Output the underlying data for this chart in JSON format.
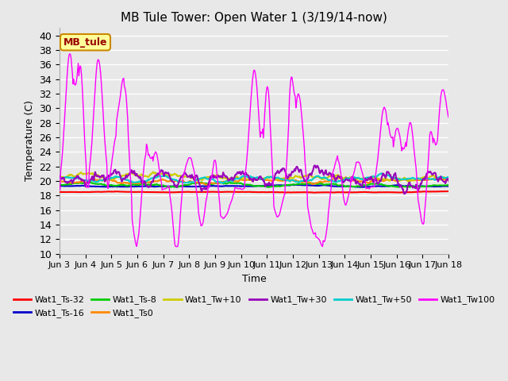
{
  "title": "MB Tule Tower: Open Water 1 (3/19/14-now)",
  "xlabel": "Time",
  "ylabel": "Temperature (C)",
  "ylim": [
    10,
    41
  ],
  "yticks": [
    10,
    12,
    14,
    16,
    18,
    20,
    22,
    24,
    26,
    28,
    30,
    32,
    34,
    36,
    38,
    40
  ],
  "x_labels": [
    "Jun 3",
    "Jun 4",
    "Jun 5",
    "Jun 6",
    "Jun 7",
    "Jun 8",
    "Jun 9",
    "Jun 10",
    "Jun 11",
    "Jun 12",
    "Jun 13",
    "Jun 14",
    "Jun 15",
    "Jun 16",
    "Jun 17",
    "Jun 18"
  ],
  "n_points": 600,
  "series": {
    "Wat1_Ts-32": {
      "color": "#ff0000",
      "lw": 1.5
    },
    "Wat1_Ts-16": {
      "color": "#0000cc",
      "lw": 1.5
    },
    "Wat1_Ts-8": {
      "color": "#00cc00",
      "lw": 1.5
    },
    "Wat1_Ts0": {
      "color": "#ff8800",
      "lw": 1.5
    },
    "Wat1_Tw+10": {
      "color": "#cccc00",
      "lw": 1.5
    },
    "Wat1_Tw+30": {
      "color": "#9900bb",
      "lw": 1.5
    },
    "Wat1_Tw+50": {
      "color": "#00cccc",
      "lw": 1.5
    },
    "Wat1_Tw100": {
      "color": "#ff00ff",
      "lw": 1.0
    }
  },
  "background_color": "#e8e8e8",
  "plot_bg_color": "#e8e8e8",
  "grid_color": "#ffffff",
  "legend_box_color": "#ffff99",
  "legend_box_edge": "#cc8800",
  "figsize": [
    6.4,
    4.8
  ],
  "dpi": 100
}
